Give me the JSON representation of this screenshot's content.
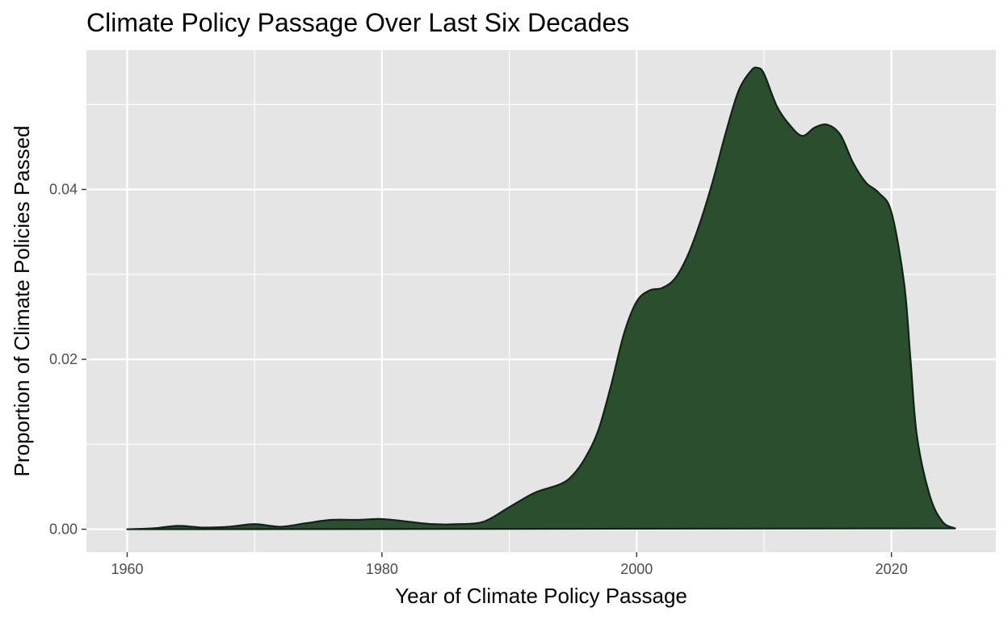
{
  "chart_data": {
    "type": "area",
    "title": "Climate Policy Passage Over Last Six Decades",
    "xlabel": "Year of Climate Policy Passage",
    "ylabel": "Proportion of Climate Policies Passed",
    "xlim": [
      1956.8,
      2028.2
    ],
    "ylim": [
      -0.0027,
      0.0564
    ],
    "x_ticks": [
      1960,
      1980,
      2000,
      2020
    ],
    "x_tick_labels": [
      "1960",
      "1980",
      "2000",
      "2020"
    ],
    "x_minor": [
      1970,
      1990,
      2010
    ],
    "y_ticks": [
      0.0,
      0.02,
      0.04
    ],
    "y_tick_labels": [
      "0.00",
      "0.02",
      "0.04"
    ],
    "y_minor": [
      0.01,
      0.03,
      0.05
    ],
    "grid": true,
    "legend": "none",
    "colors": {
      "fill": "#2b4f2e",
      "stroke": "#0f2414",
      "panel": "#e5e5e5",
      "grid": "#ffffff"
    },
    "series": [
      {
        "x": [
          1960,
          1962,
          1964,
          1966,
          1968,
          1970,
          1972,
          1974,
          1976,
          1978,
          1980,
          1982,
          1984,
          1986,
          1988,
          1990,
          1992,
          1994,
          1995,
          1996,
          1997,
          1998,
          1999,
          2000,
          2001,
          2002,
          2003,
          2004,
          2005,
          2006,
          2007,
          2008,
          2009,
          2009.5,
          2010,
          2011,
          2012,
          2013,
          2014,
          2015,
          2016,
          2017,
          2018,
          2019,
          2020,
          2021,
          2021.5,
          2022,
          2023,
          2024,
          2025
        ],
        "y": [
          0.0,
          0.0001,
          0.0004,
          0.0002,
          0.0003,
          0.0006,
          0.0003,
          0.0007,
          0.0011,
          0.0011,
          0.0012,
          0.0009,
          0.0006,
          0.0006,
          0.0009,
          0.0026,
          0.0043,
          0.0053,
          0.0064,
          0.0085,
          0.0117,
          0.017,
          0.023,
          0.0268,
          0.0281,
          0.0284,
          0.0295,
          0.0322,
          0.0362,
          0.0411,
          0.0467,
          0.0516,
          0.054,
          0.0543,
          0.0536,
          0.0498,
          0.0476,
          0.0463,
          0.0473,
          0.0476,
          0.0464,
          0.0431,
          0.0408,
          0.0396,
          0.0373,
          0.0289,
          0.0199,
          0.011,
          0.004,
          0.0009,
          0.0001
        ]
      }
    ]
  }
}
